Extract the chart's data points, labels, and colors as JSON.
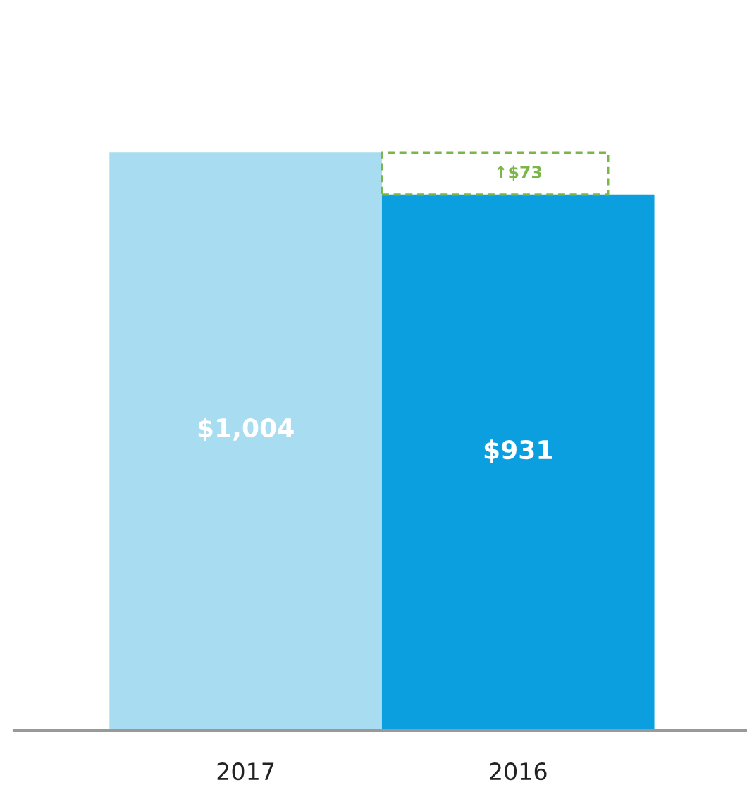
{
  "chart_data": {
    "type": "bar",
    "categories": [
      "2017",
      "2016"
    ],
    "values": [
      1004,
      931
    ],
    "colors": [
      "#a8dcf1",
      "#0b9fdf"
    ],
    "value_labels": [
      "$1,004",
      "$931"
    ],
    "tick_labels": "x",
    "annotations": [
      "↑$73"
    ]
  }
}
